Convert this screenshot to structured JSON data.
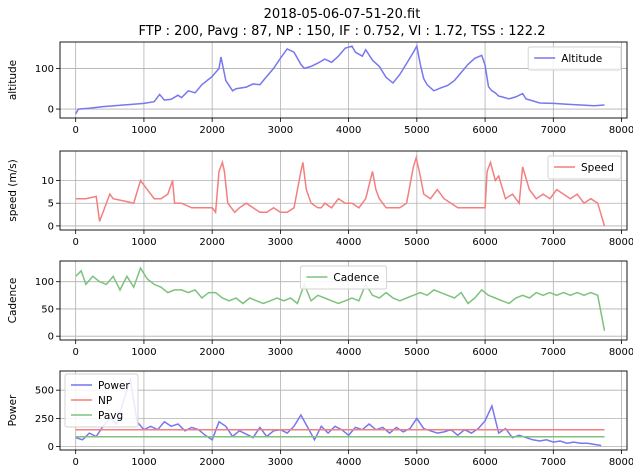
{
  "figure": {
    "title_line1": "2018-05-06-07-51-20.fit",
    "title_line2": "FTP : 200, Pavg : 87, NP : 150,  IF : 0.752, VI : 1.72, TSS : 122.2"
  },
  "chart_data": [
    {
      "type": "line",
      "ylabel": "altitude",
      "xlim": [
        -230,
        8080
      ],
      "ylim": [
        -22,
        165
      ],
      "xticks": [
        0,
        1000,
        2000,
        3000,
        4000,
        5000,
        6000,
        7000,
        8000
      ],
      "yticks": [
        0,
        100
      ],
      "grid": true,
      "legend": "upper right",
      "series": [
        {
          "name": "Altitude",
          "color": "#7777f0",
          "x": [
            0,
            40,
            200,
            400,
            700,
            1000,
            1150,
            1230,
            1300,
            1400,
            1500,
            1550,
            1650,
            1750,
            1850,
            2000,
            2100,
            2130,
            2200,
            2300,
            2350,
            2500,
            2600,
            2700,
            2800,
            2900,
            3000,
            3100,
            3200,
            3300,
            3350,
            3450,
            3550,
            3650,
            3750,
            3850,
            3950,
            4050,
            4100,
            4200,
            4250,
            4350,
            4450,
            4550,
            4650,
            4750,
            4850,
            4950,
            5000,
            5050,
            5100,
            5150,
            5250,
            5350,
            5450,
            5550,
            5650,
            5750,
            5850,
            5950,
            6000,
            6050,
            6100,
            6150,
            6200,
            6250,
            6350,
            6450,
            6550,
            6600,
            6700,
            6800,
            7000,
            7200,
            7400,
            7600,
            7750
          ],
          "y": [
            -12,
            0,
            2,
            6,
            10,
            14,
            18,
            36,
            22,
            24,
            34,
            28,
            45,
            40,
            60,
            80,
            100,
            128,
            70,
            45,
            50,
            54,
            62,
            60,
            80,
            100,
            125,
            148,
            140,
            110,
            100,
            105,
            113,
            123,
            115,
            130,
            150,
            155,
            140,
            130,
            146,
            120,
            105,
            78,
            64,
            85,
            112,
            140,
            155,
            110,
            75,
            60,
            45,
            52,
            58,
            70,
            90,
            110,
            125,
            132,
            108,
            55,
            45,
            40,
            32,
            30,
            25,
            30,
            38,
            25,
            20,
            15,
            14,
            12,
            10,
            8,
            10
          ]
        }
      ]
    },
    {
      "type": "line",
      "ylabel": "speed (m/s)",
      "xlim": [
        -230,
        8080
      ],
      "ylim": [
        -0.9,
        16.5
      ],
      "xticks": [
        0,
        1000,
        2000,
        3000,
        4000,
        5000,
        6000,
        7000,
        8000
      ],
      "yticks": [
        0,
        5,
        10
      ],
      "grid": true,
      "legend": "upper right",
      "series": [
        {
          "name": "Speed",
          "color": "#f37f7f",
          "x": [
            0,
            150,
            300,
            350,
            450,
            500,
            550,
            700,
            850,
            950,
            1000,
            1050,
            1150,
            1250,
            1350,
            1420,
            1450,
            1550,
            1700,
            1850,
            2000,
            2050,
            2100,
            2150,
            2180,
            2230,
            2280,
            2330,
            2400,
            2500,
            2600,
            2700,
            2800,
            2900,
            3000,
            3100,
            3200,
            3300,
            3330,
            3380,
            3450,
            3550,
            3600,
            3650,
            3750,
            3850,
            3950,
            4050,
            4150,
            4250,
            4350,
            4400,
            4450,
            4550,
            4650,
            4750,
            4850,
            4950,
            4990,
            5050,
            5100,
            5200,
            5300,
            5400,
            5500,
            5600,
            5700,
            5800,
            5900,
            6000,
            6030,
            6080,
            6150,
            6200,
            6300,
            6400,
            6500,
            6550,
            6650,
            6750,
            6850,
            6950,
            7050,
            7150,
            7250,
            7350,
            7450,
            7550,
            7650,
            7750
          ],
          "y": [
            6,
            6,
            6.5,
            1,
            5,
            7,
            6,
            5.5,
            5,
            10,
            9,
            8,
            6,
            6,
            7,
            10,
            5,
            5,
            4,
            4,
            4,
            3,
            12,
            14,
            12,
            5,
            4,
            3,
            4,
            5,
            4,
            3,
            3,
            4,
            3,
            3,
            4,
            12,
            14,
            8,
            5,
            4,
            4,
            5,
            4,
            6,
            5,
            5,
            4,
            6,
            12,
            8,
            6,
            4,
            4,
            4,
            5,
            13,
            15,
            11,
            7,
            6,
            8,
            6,
            5,
            4,
            4,
            4,
            4,
            4,
            12,
            14,
            10,
            11,
            6,
            7,
            5,
            13,
            8,
            6,
            7,
            6,
            8,
            7,
            6,
            7,
            5,
            6,
            5,
            0
          ]
        }
      ]
    },
    {
      "type": "line",
      "ylabel": "Cadence",
      "xlim": [
        -230,
        8080
      ],
      "ylim": [
        -7,
        138
      ],
      "xticks": [
        0,
        1000,
        2000,
        3000,
        4000,
        5000,
        6000,
        7000,
        8000
      ],
      "yticks": [
        0,
        50,
        100
      ],
      "grid": true,
      "legend": "upper center",
      "series": [
        {
          "name": "Cadence",
          "color": "#7dc27d",
          "x": [
            0,
            80,
            150,
            250,
            350,
            450,
            550,
            650,
            750,
            850,
            950,
            1050,
            1150,
            1250,
            1350,
            1450,
            1550,
            1650,
            1750,
            1850,
            1950,
            2050,
            2150,
            2250,
            2350,
            2450,
            2550,
            2650,
            2750,
            2850,
            2950,
            3050,
            3150,
            3250,
            3350,
            3450,
            3550,
            3650,
            3750,
            3850,
            3950,
            4050,
            4150,
            4250,
            4350,
            4450,
            4550,
            4650,
            4750,
            4850,
            4950,
            5050,
            5150,
            5250,
            5350,
            5450,
            5550,
            5650,
            5750,
            5850,
            5950,
            6050,
            6150,
            6250,
            6350,
            6450,
            6550,
            6650,
            6750,
            6850,
            6950,
            7050,
            7150,
            7250,
            7350,
            7450,
            7550,
            7650,
            7750
          ],
          "y": [
            110,
            120,
            95,
            110,
            100,
            95,
            110,
            85,
            110,
            90,
            125,
            105,
            95,
            90,
            80,
            85,
            85,
            80,
            85,
            70,
            80,
            80,
            70,
            65,
            70,
            60,
            70,
            65,
            60,
            65,
            70,
            65,
            70,
            60,
            95,
            65,
            75,
            70,
            65,
            60,
            65,
            70,
            65,
            95,
            75,
            70,
            80,
            70,
            65,
            70,
            75,
            80,
            75,
            85,
            80,
            75,
            70,
            80,
            60,
            70,
            85,
            75,
            70,
            65,
            60,
            70,
            75,
            70,
            80,
            75,
            80,
            75,
            80,
            75,
            80,
            75,
            80,
            75,
            10
          ]
        }
      ]
    },
    {
      "type": "line",
      "ylabel": "Power",
      "xlim": [
        -230,
        8080
      ],
      "ylim": [
        -30,
        670
      ],
      "xticks": [
        0,
        1000,
        2000,
        3000,
        4000,
        5000,
        6000,
        7000,
        8000
      ],
      "yticks": [
        0,
        250,
        500
      ],
      "grid": true,
      "legend": "upper left",
      "series": [
        {
          "name": "Power",
          "color": "#7777f0",
          "x": [
            0,
            100,
            200,
            300,
            400,
            500,
            600,
            700,
            800,
            900,
            1000,
            1100,
            1200,
            1300,
            1400,
            1500,
            1600,
            1700,
            1800,
            1900,
            2000,
            2100,
            2200,
            2300,
            2400,
            2500,
            2600,
            2700,
            2800,
            2900,
            3000,
            3100,
            3200,
            3300,
            3400,
            3500,
            3600,
            3700,
            3800,
            3900,
            4000,
            4100,
            4200,
            4300,
            4400,
            4500,
            4600,
            4700,
            4800,
            4900,
            5000,
            5100,
            5200,
            5300,
            5400,
            5500,
            5600,
            5700,
            5800,
            5900,
            6000,
            6100,
            6200,
            6300,
            6400,
            6500,
            6600,
            6700,
            6800,
            6900,
            7000,
            7100,
            7200,
            7300,
            7400,
            7500,
            7600,
            7700
          ],
          "y": [
            80,
            60,
            120,
            90,
            180,
            250,
            200,
            400,
            600,
            220,
            150,
            180,
            150,
            220,
            180,
            200,
            140,
            170,
            150,
            100,
            60,
            220,
            180,
            90,
            140,
            110,
            80,
            170,
            90,
            140,
            150,
            120,
            180,
            280,
            170,
            60,
            180,
            120,
            180,
            150,
            100,
            170,
            150,
            200,
            150,
            170,
            120,
            170,
            130,
            160,
            250,
            160,
            140,
            120,
            130,
            150,
            100,
            150,
            120,
            160,
            230,
            360,
            120,
            160,
            80,
            100,
            80,
            60,
            50,
            60,
            40,
            50,
            30,
            40,
            30,
            30,
            20,
            10
          ]
        },
        {
          "name": "NP",
          "color": "#f37f7f",
          "x": [
            0,
            7750
          ],
          "y": [
            150,
            150
          ]
        },
        {
          "name": "Pavg",
          "color": "#7dc27d",
          "x": [
            0,
            7750
          ],
          "y": [
            87,
            87
          ]
        }
      ]
    }
  ]
}
